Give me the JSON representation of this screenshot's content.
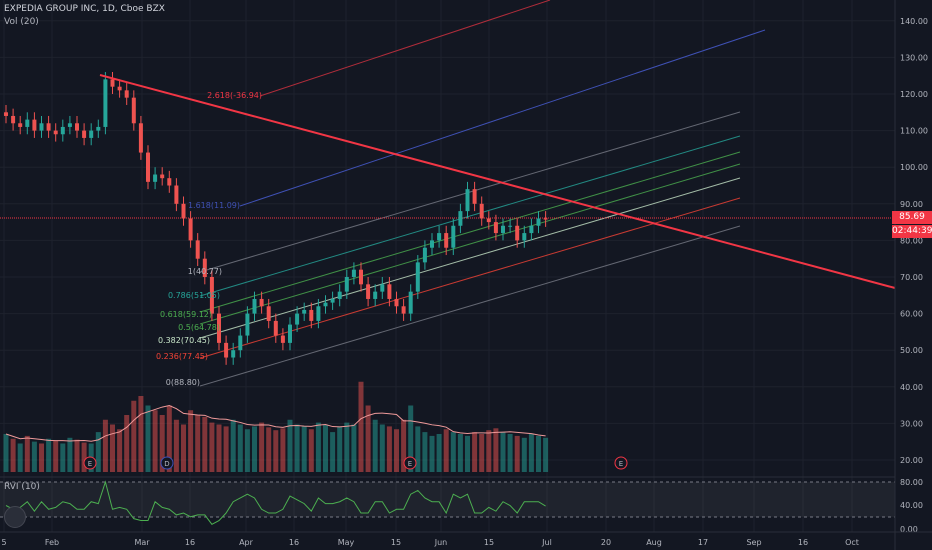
{
  "header": {
    "symbol_line": "EXPEDIA GROUP INC, 1D, Cboe BZX",
    "volume_label": "Vol (20)",
    "indicator_label": "RVI (10)"
  },
  "price_badges": {
    "last_price": "85.69",
    "countdown": "02:44:39",
    "last_color": "#f23645",
    "countdown_color": "#f23645"
  },
  "chart_data": {
    "type": "candlestick",
    "x_tick_labels": [
      "5",
      "Feb",
      "Mar",
      "16",
      "Apr",
      "16",
      "May",
      "15",
      "Jun",
      "15",
      "Jul",
      "20",
      "Aug",
      "17",
      "Sep",
      "16",
      "Oct"
    ],
    "y_ticks": [
      20,
      30,
      40,
      50,
      60,
      70,
      80,
      90,
      100,
      110,
      120,
      130,
      140
    ],
    "y_tick_labels": [
      "20.00",
      "30.00",
      "40.00",
      "50.00",
      "60.00",
      "70.00",
      "80.00",
      "90.00",
      "100.00",
      "110.00",
      "120.00",
      "130.00",
      "140.00"
    ],
    "rvi_ticks": [
      "80.00",
      "40.00",
      "0.00"
    ],
    "fib_channel_labels": [
      {
        "text": "1(40.77)",
        "color": "#b2b5be"
      },
      {
        "text": "0.786(51.05)",
        "color": "#26a69a"
      },
      {
        "text": "0.618(59.12)",
        "color": "#4caf50"
      },
      {
        "text": "0.5(64.78)",
        "color": "#4caf50"
      },
      {
        "text": "0.382(70.45)",
        "color": "#c8e6c9"
      },
      {
        "text": "0.236(77.45)",
        "color": "#f44336"
      },
      {
        "text": "0(88.80)",
        "color": "#b2b5be"
      },
      {
        "text": "1.618(11.09)",
        "color": "#3f51b5"
      },
      {
        "text": "2.618(-36.94)",
        "color": "#f23645"
      }
    ],
    "event_markers": [
      "E",
      "D",
      "E",
      "E"
    ],
    "close_prices": [
      114,
      112,
      111,
      113,
      110,
      112,
      110,
      109,
      111,
      112,
      110,
      108,
      110,
      111,
      124,
      122,
      121,
      119,
      112,
      104,
      96,
      98,
      97,
      95,
      90,
      86,
      80,
      75,
      70,
      60,
      52,
      48,
      50,
      54,
      60,
      64,
      62,
      58,
      54,
      52,
      57,
      60,
      61,
      58,
      62,
      63,
      64,
      66,
      70,
      72,
      68,
      64,
      66,
      68,
      64,
      62,
      60,
      66,
      74,
      78,
      80,
      82,
      78,
      84,
      88,
      94,
      90,
      86,
      85,
      82,
      84,
      84,
      80,
      82,
      84,
      86,
      85.69
    ],
    "volumes": [
      40,
      35,
      30,
      38,
      32,
      30,
      35,
      33,
      30,
      36,
      34,
      31,
      30,
      42,
      55,
      50,
      45,
      60,
      75,
      80,
      70,
      65,
      60,
      70,
      55,
      50,
      65,
      60,
      58,
      52,
      50,
      48,
      55,
      50,
      45,
      48,
      52,
      47,
      44,
      46,
      55,
      50,
      48,
      45,
      52,
      50,
      42,
      48,
      52,
      50,
      95,
      70,
      55,
      50,
      48,
      45,
      55,
      70,
      48,
      42,
      38,
      40,
      45,
      42,
      40,
      38,
      42,
      40,
      44,
      46,
      42,
      40,
      38,
      36,
      40,
      38,
      36
    ],
    "volume_colors": [
      "up",
      "down",
      "up",
      "down",
      "up",
      "down",
      "up",
      "down",
      "up",
      "up",
      "down",
      "down",
      "up",
      "up",
      "down",
      "down",
      "down",
      "down",
      "down",
      "down",
      "up",
      "down",
      "down",
      "down",
      "down",
      "down",
      "down",
      "down",
      "down",
      "down",
      "down",
      "down",
      "up",
      "up",
      "up",
      "up",
      "down",
      "down",
      "down",
      "down",
      "up",
      "up",
      "up",
      "down",
      "up",
      "up",
      "up",
      "up",
      "up",
      "up",
      "down",
      "down",
      "up",
      "up",
      "down",
      "down",
      "down",
      "up",
      "up",
      "up",
      "up",
      "up",
      "down",
      "up",
      "up",
      "up",
      "down",
      "down",
      "down",
      "down",
      "up",
      "up",
      "down",
      "up",
      "up",
      "up",
      "up"
    ]
  }
}
